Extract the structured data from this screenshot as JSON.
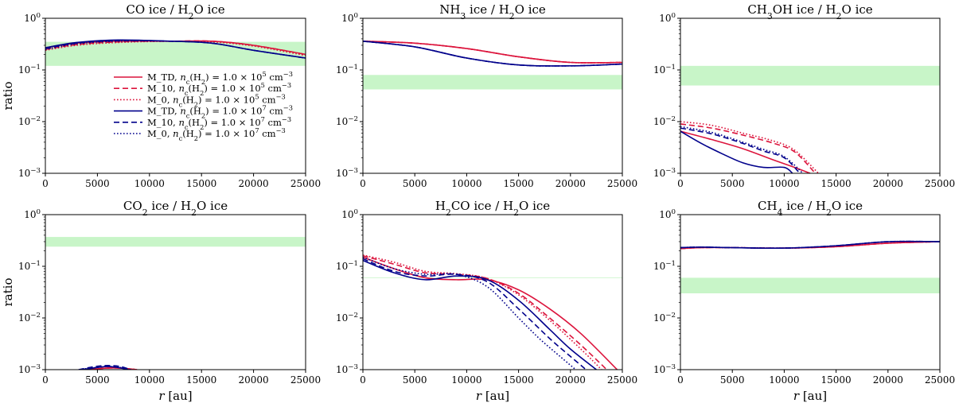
{
  "figure": {
    "ylabel": "ratio",
    "xlabel": "r [au]",
    "band_color": "#c8f5c8",
    "colors": {
      "red": "#dc143c",
      "blue": "#00008b"
    }
  },
  "legend": [
    {
      "label": "M_TD, n_c(H_2) = 1.0 × 10^5 cm^-3",
      "color": "#dc143c",
      "dash": "solid"
    },
    {
      "label": "M_10, n_c(H_2) = 1.0 × 10^5 cm^-3",
      "color": "#dc143c",
      "dash": "dashed"
    },
    {
      "label": "M_0, n_c(H_2) = 1.0 × 10^5 cm^-3",
      "color": "#dc143c",
      "dash": "dotted"
    },
    {
      "label": "M_TD, n_c(H_2) = 1.0 × 10^7 cm^-3",
      "color": "#00008b",
      "dash": "solid"
    },
    {
      "label": "M_10, n_c(H_2) = 1.0 × 10^7 cm^-3",
      "color": "#00008b",
      "dash": "dashed"
    },
    {
      "label": "M_0, n_c(H_2) = 1.0 × 10^7 cm^-3",
      "color": "#00008b",
      "dash": "dotted"
    }
  ],
  "chart_data": [
    {
      "type": "line",
      "title": "CO ice / H2O ice",
      "xlim": [
        0,
        25000
      ],
      "ylim": [
        0.001,
        1
      ],
      "yscale": "log",
      "band": [
        0.12,
        0.35
      ],
      "series": [
        {
          "model": "M_TD",
          "density": "1e5",
          "x": [
            0,
            3000,
            7000,
            12000,
            16000,
            20000,
            25000
          ],
          "y": [
            0.27,
            0.33,
            0.36,
            0.36,
            0.36,
            0.3,
            0.2
          ]
        },
        {
          "model": "M_10",
          "density": "1e5",
          "x": [
            0,
            3000,
            7000,
            12000,
            16000,
            20000,
            25000
          ],
          "y": [
            0.25,
            0.31,
            0.35,
            0.36,
            0.36,
            0.3,
            0.2
          ]
        },
        {
          "model": "M_0",
          "density": "1e5",
          "x": [
            0,
            3000,
            7000,
            12000,
            16000,
            20000,
            25000
          ],
          "y": [
            0.24,
            0.3,
            0.34,
            0.36,
            0.35,
            0.29,
            0.19
          ]
        },
        {
          "model": "M_TD",
          "density": "1e7",
          "x": [
            0,
            3000,
            7000,
            12000,
            16000,
            20000,
            25000
          ],
          "y": [
            0.27,
            0.34,
            0.38,
            0.36,
            0.33,
            0.24,
            0.17
          ]
        },
        {
          "model": "M_10",
          "density": "1e7",
          "x": [
            0,
            3000,
            7000,
            12000,
            16000,
            20000,
            25000
          ],
          "y": [
            0.26,
            0.33,
            0.37,
            0.36,
            0.33,
            0.24,
            0.17
          ]
        },
        {
          "model": "M_0",
          "density": "1e7",
          "x": [
            0,
            3000,
            7000,
            12000,
            16000,
            20000,
            25000
          ],
          "y": [
            0.25,
            0.32,
            0.36,
            0.36,
            0.33,
            0.24,
            0.17
          ]
        }
      ]
    },
    {
      "type": "line",
      "title": "NH3 ice / H2O ice",
      "xlim": [
        0,
        25000
      ],
      "ylim": [
        0.001,
        1
      ],
      "yscale": "log",
      "band": [
        0.042,
        0.08
      ],
      "series": [
        {
          "model": "M_TD",
          "density": "1e5",
          "x": [
            0,
            5000,
            10000,
            15000,
            20000,
            25000
          ],
          "y": [
            0.36,
            0.33,
            0.26,
            0.18,
            0.14,
            0.14
          ]
        },
        {
          "model": "M_10",
          "density": "1e5",
          "x": [
            0,
            5000,
            10000,
            15000,
            20000,
            25000
          ],
          "y": [
            0.36,
            0.33,
            0.26,
            0.18,
            0.14,
            0.14
          ]
        },
        {
          "model": "M_0",
          "density": "1e5",
          "x": [
            0,
            5000,
            10000,
            15000,
            20000,
            25000
          ],
          "y": [
            0.36,
            0.33,
            0.26,
            0.18,
            0.14,
            0.14
          ]
        },
        {
          "model": "M_TD",
          "density": "1e7",
          "x": [
            0,
            5000,
            10000,
            15000,
            20000,
            25000
          ],
          "y": [
            0.36,
            0.28,
            0.17,
            0.125,
            0.12,
            0.13
          ]
        },
        {
          "model": "M_10",
          "density": "1e7",
          "x": [
            0,
            5000,
            10000,
            15000,
            20000,
            25000
          ],
          "y": [
            0.36,
            0.28,
            0.17,
            0.125,
            0.12,
            0.13
          ]
        },
        {
          "model": "M_0",
          "density": "1e7",
          "x": [
            0,
            5000,
            10000,
            15000,
            20000,
            25000
          ],
          "y": [
            0.36,
            0.28,
            0.17,
            0.125,
            0.12,
            0.13
          ]
        }
      ]
    },
    {
      "type": "line",
      "title": "CH3OH ice / H2O ice",
      "xlim": [
        0,
        25000
      ],
      "ylim": [
        0.001,
        1
      ],
      "yscale": "log",
      "band": [
        0.05,
        0.12
      ],
      "series": [
        {
          "model": "M_TD",
          "density": "1e5",
          "x": [
            0,
            3000,
            6000,
            9000,
            11000,
            12500
          ],
          "y": [
            0.0065,
            0.0045,
            0.003,
            0.0018,
            0.0013,
            0.001
          ]
        },
        {
          "model": "M_10",
          "density": "1e5",
          "x": [
            0,
            3000,
            6000,
            9000,
            11000,
            13000
          ],
          "y": [
            0.009,
            0.0075,
            0.0055,
            0.0038,
            0.0026,
            0.001
          ]
        },
        {
          "model": "M_0",
          "density": "1e5",
          "x": [
            0,
            3000,
            6000,
            9000,
            11000,
            13300
          ],
          "y": [
            0.01,
            0.0085,
            0.006,
            0.0042,
            0.0028,
            0.001
          ]
        },
        {
          "model": "M_TD",
          "density": "1e7",
          "x": [
            0,
            2000,
            4000,
            6000,
            8000,
            10000,
            10800
          ],
          "y": [
            0.0065,
            0.0038,
            0.0024,
            0.0016,
            0.0013,
            0.0013,
            0.001
          ]
        },
        {
          "model": "M_10",
          "density": "1e7",
          "x": [
            0,
            3000,
            6000,
            8000,
            10000,
            11500
          ],
          "y": [
            0.0075,
            0.0058,
            0.0038,
            0.0027,
            0.002,
            0.001
          ]
        },
        {
          "model": "M_0",
          "density": "1e7",
          "x": [
            0,
            3000,
            6000,
            8000,
            10000,
            11800
          ],
          "y": [
            0.008,
            0.0062,
            0.004,
            0.0029,
            0.0021,
            0.001
          ]
        }
      ]
    },
    {
      "type": "line",
      "title": "CO2 ice / H2O ice",
      "xlim": [
        0,
        25000
      ],
      "ylim": [
        0.001,
        1
      ],
      "yscale": "log",
      "band": [
        0.24,
        0.37
      ],
      "series": [
        {
          "model": "M_TD",
          "density": "1e5",
          "x": [
            4200,
            5500,
            6500,
            7500,
            8800
          ],
          "y": [
            0.001,
            0.00106,
            0.00108,
            0.00106,
            0.001
          ]
        },
        {
          "model": "M_10",
          "density": "1e5",
          "x": [
            4200,
            5500,
            6500,
            7500,
            8800
          ],
          "y": [
            0.001,
            0.00106,
            0.00108,
            0.00106,
            0.001
          ]
        },
        {
          "model": "M_0",
          "density": "1e5",
          "x": [
            4200,
            5500,
            6500,
            7500,
            8800
          ],
          "y": [
            0.001,
            0.00106,
            0.00108,
            0.00106,
            0.001
          ]
        },
        {
          "model": "M_TD",
          "density": "1e7",
          "x": [
            3500,
            5000,
            6000,
            7000,
            8000
          ],
          "y": [
            0.001,
            0.0011,
            0.00115,
            0.0011,
            0.001
          ]
        },
        {
          "model": "M_10",
          "density": "1e7",
          "x": [
            3200,
            4800,
            6000,
            7200,
            8200
          ],
          "y": [
            0.001,
            0.00115,
            0.0012,
            0.00115,
            0.001
          ]
        },
        {
          "model": "M_0",
          "density": "1e7",
          "x": [
            3200,
            4800,
            6000,
            7200,
            8200
          ],
          "y": [
            0.001,
            0.0011,
            0.00115,
            0.0011,
            0.001
          ]
        }
      ]
    },
    {
      "type": "line",
      "title": "H2CO ice / H2O ice",
      "xlim": [
        0,
        25000
      ],
      "ylim": [
        0.001,
        1
      ],
      "yscale": "log",
      "band": [
        0.06,
        0.061
      ],
      "series": [
        {
          "model": "M_TD",
          "density": "1e5",
          "x": [
            0,
            3000,
            6000,
            9000,
            12000,
            15000,
            18000,
            21000,
            24500
          ],
          "y": [
            0.15,
            0.09,
            0.06,
            0.055,
            0.055,
            0.035,
            0.015,
            0.005,
            0.001
          ]
        },
        {
          "model": "M_10",
          "density": "1e5",
          "x": [
            0,
            3000,
            6000,
            9000,
            12000,
            15000,
            18000,
            21000,
            23500
          ],
          "y": [
            0.16,
            0.11,
            0.075,
            0.07,
            0.058,
            0.03,
            0.01,
            0.003,
            0.001
          ]
        },
        {
          "model": "M_0",
          "density": "1e5",
          "x": [
            0,
            3000,
            6000,
            9000,
            12000,
            15000,
            18000,
            21000,
            23000
          ],
          "y": [
            0.165,
            0.12,
            0.08,
            0.072,
            0.058,
            0.028,
            0.009,
            0.0025,
            0.001
          ]
        },
        {
          "model": "M_TD",
          "density": "1e7",
          "x": [
            0,
            3000,
            6000,
            9000,
            12000,
            15000,
            18000,
            20000,
            22500
          ],
          "y": [
            0.13,
            0.075,
            0.055,
            0.065,
            0.055,
            0.022,
            0.006,
            0.0025,
            0.001
          ]
        },
        {
          "model": "M_10",
          "density": "1e7",
          "x": [
            0,
            3000,
            6000,
            9000,
            12000,
            15000,
            18000,
            20000,
            21500
          ],
          "y": [
            0.14,
            0.08,
            0.065,
            0.07,
            0.05,
            0.015,
            0.004,
            0.0018,
            0.001
          ]
        },
        {
          "model": "M_0",
          "density": "1e7",
          "x": [
            0,
            3000,
            6000,
            9000,
            12000,
            15000,
            17000,
            19000,
            20500
          ],
          "y": [
            0.15,
            0.09,
            0.07,
            0.07,
            0.04,
            0.01,
            0.004,
            0.0018,
            0.001
          ]
        }
      ]
    },
    {
      "type": "line",
      "title": "CH4 ice / H2O ice",
      "xlim": [
        0,
        25000
      ],
      "ylim": [
        0.001,
        1
      ],
      "yscale": "log",
      "band": [
        0.03,
        0.06
      ],
      "series": [
        {
          "model": "M_TD",
          "density": "1e5",
          "x": [
            0,
            2000,
            5000,
            10000,
            15000,
            20000,
            25000
          ],
          "y": [
            0.22,
            0.23,
            0.23,
            0.225,
            0.24,
            0.28,
            0.3
          ]
        },
        {
          "model": "M_10",
          "density": "1e5",
          "x": [
            0,
            2000,
            5000,
            10000,
            15000,
            20000,
            25000
          ],
          "y": [
            0.22,
            0.23,
            0.23,
            0.225,
            0.24,
            0.28,
            0.3
          ]
        },
        {
          "model": "M_0",
          "density": "1e5",
          "x": [
            0,
            2000,
            5000,
            10000,
            15000,
            20000,
            25000
          ],
          "y": [
            0.22,
            0.23,
            0.23,
            0.225,
            0.24,
            0.28,
            0.3
          ]
        },
        {
          "model": "M_TD",
          "density": "1e7",
          "x": [
            0,
            2000,
            5000,
            10000,
            15000,
            20000,
            25000
          ],
          "y": [
            0.23,
            0.235,
            0.23,
            0.225,
            0.25,
            0.3,
            0.3
          ]
        },
        {
          "model": "M_10",
          "density": "1e7",
          "x": [
            0,
            2000,
            5000,
            10000,
            15000,
            20000,
            25000
          ],
          "y": [
            0.23,
            0.235,
            0.23,
            0.225,
            0.25,
            0.3,
            0.3
          ]
        },
        {
          "model": "M_0",
          "density": "1e7",
          "x": [
            0,
            2000,
            5000,
            10000,
            15000,
            20000,
            25000
          ],
          "y": [
            0.23,
            0.235,
            0.23,
            0.225,
            0.25,
            0.3,
            0.3
          ]
        }
      ]
    }
  ]
}
